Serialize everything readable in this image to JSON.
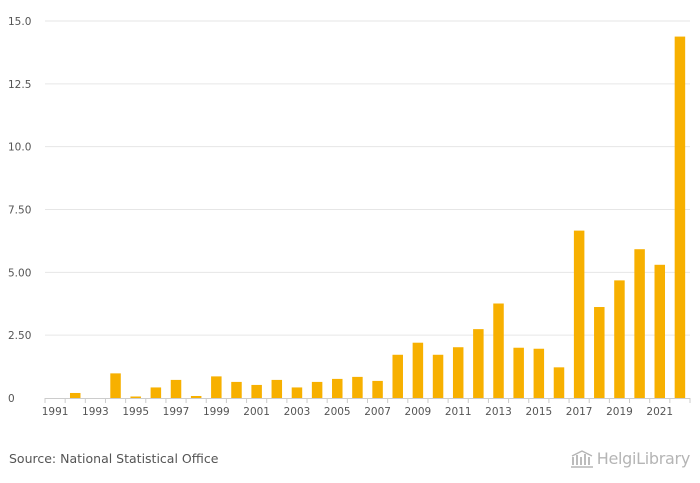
{
  "chart_data": {
    "type": "bar",
    "title": "",
    "xlabel": "",
    "ylabel": "",
    "ylim": [
      0,
      15
    ],
    "yticks": [
      "0",
      "2.50",
      "5.00",
      "7.50",
      "10.0",
      "12.5",
      "15.0"
    ],
    "ytick_values": [
      0,
      2.5,
      5,
      7.5,
      10,
      12.5,
      15
    ],
    "xtick_labels": [
      "1991",
      "1993",
      "1995",
      "1997",
      "1999",
      "2001",
      "2003",
      "2005",
      "2007",
      "2009",
      "2011",
      "2013",
      "2015",
      "2017",
      "2019",
      "2021"
    ],
    "categories": [
      "1991",
      "1992",
      "1993",
      "1994",
      "1995",
      "1996",
      "1997",
      "1998",
      "1999",
      "2000",
      "2001",
      "2002",
      "2003",
      "2004",
      "2005",
      "2006",
      "2007",
      "2008",
      "2009",
      "2010",
      "2011",
      "2012",
      "2013",
      "2014",
      "2015",
      "2016",
      "2017",
      "2018",
      "2019",
      "2020",
      "2021",
      "2022"
    ],
    "values": [
      0,
      0.2,
      0,
      0.98,
      0.06,
      0.42,
      0.72,
      0.08,
      0.86,
      0.64,
      0.52,
      0.72,
      0.42,
      0.64,
      0.76,
      0.84,
      0.68,
      1.72,
      2.2,
      1.72,
      2.02,
      2.74,
      3.76,
      2,
      1.96,
      1.22,
      6.66,
      3.62,
      4.68,
      5.92,
      5.3,
      14.38
    ],
    "grid": true,
    "legend": "none",
    "bar_color": "#f7b000",
    "grid_color": "#e6e6e6",
    "axis_color": "#cccccc",
    "label_color": "#555555"
  },
  "footer": {
    "source": "Source: National Statistical Office",
    "brand": "HelgiLibrary",
    "brand_icon": "library-building-icon"
  }
}
